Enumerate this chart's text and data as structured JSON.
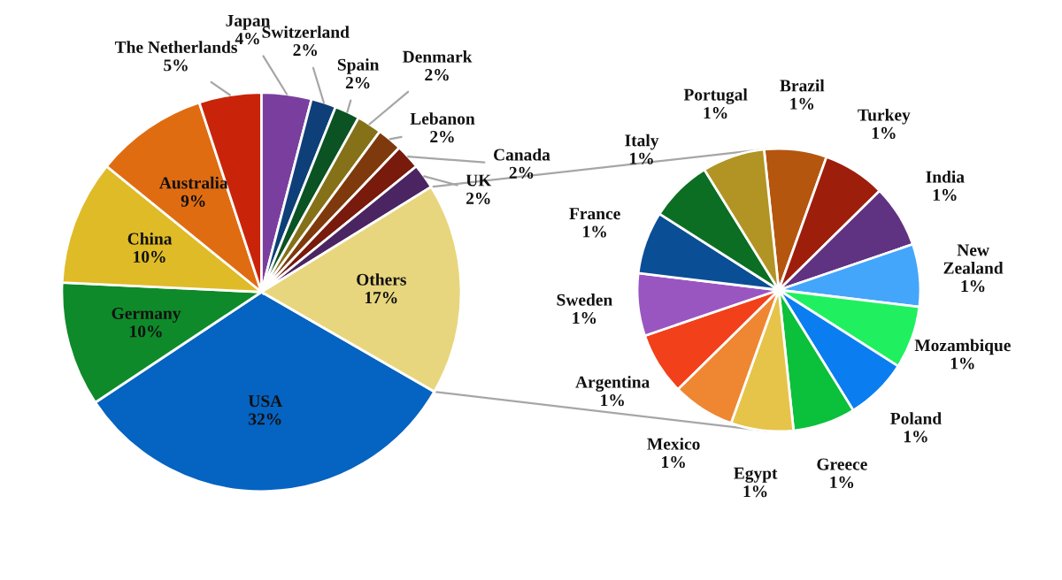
{
  "chart_data": [
    {
      "type": "pie",
      "categories": [
        "USA",
        "Germany",
        "China",
        "Australia",
        "The Netherlands",
        "Japan",
        "Switzerland",
        "Spain",
        "Denmark",
        "Lebanon",
        "Canada",
        "UK",
        "Others"
      ],
      "values": [
        32,
        10,
        10,
        9,
        5,
        4,
        2,
        2,
        2,
        2,
        2,
        2,
        17
      ],
      "value_labels": [
        "32%",
        "10%",
        "10%",
        "9%",
        "5%",
        "4%",
        "2%",
        "2%",
        "2%",
        "2%",
        "2%",
        "2%",
        "17%"
      ],
      "colors": [
        "#0563c1",
        "#0e8a2a",
        "#dfbb28",
        "#e06c12",
        "#c9240a",
        "#7a3f9e",
        "#0f3f78",
        "#0b5322",
        "#857118",
        "#7e3a0c",
        "#781a0c",
        "#4a2562",
        "#e8d67e"
      ]
    },
    {
      "type": "pie",
      "categories": [
        "Brazil",
        "Turkey",
        "India",
        "New\nZealand",
        "Mozambique",
        "Poland",
        "Greece",
        "Egypt",
        "Mexico",
        "Argentina",
        "Sweden",
        "France",
        "Italy",
        "Portugal"
      ],
      "values": [
        1,
        1,
        1,
        1,
        1,
        1,
        1,
        1,
        1,
        1,
        1,
        1,
        1,
        1
      ],
      "value_labels": [
        "1%",
        "1%",
        "1%",
        "1%",
        "1%",
        "1%",
        "1%",
        "1%",
        "1%",
        "1%",
        "1%",
        "1%",
        "1%",
        "1%"
      ],
      "colors": [
        "#b5560e",
        "#9e1e0c",
        "#5f3282",
        "#44a6fa",
        "#20f060",
        "#0a7ef0",
        "#0bc03a",
        "#e6c44a",
        "#ef8632",
        "#f2401a",
        "#9a56c0",
        "#0a4e96",
        "#0c6e22",
        "#b29424"
      ]
    }
  ]
}
